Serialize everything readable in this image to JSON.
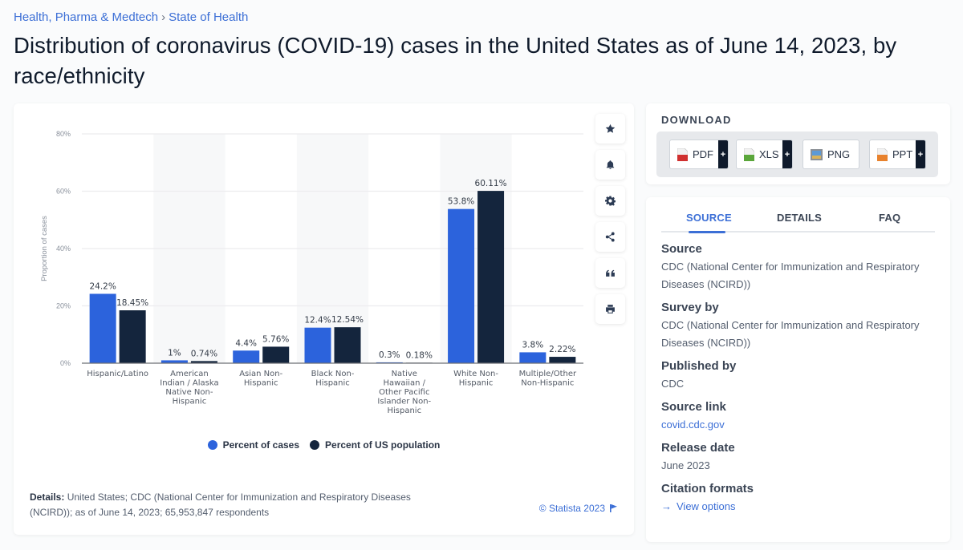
{
  "breadcrumb": {
    "items": [
      "Health, Pharma & Medtech",
      "State of Health"
    ],
    "separator": "›"
  },
  "title": "Distribution of coronavirus (COVID-19) cases in the United States as of June 14, 2023, by race/ethnicity",
  "colors": {
    "series_cases": "#2c63dc",
    "series_population": "#14253d",
    "accent": "#3c6fd6"
  },
  "chart_data": {
    "type": "bar",
    "title": "",
    "xlabel": "",
    "ylabel": "Proportion of cases",
    "ylim": [
      0,
      80
    ],
    "yticks": [
      "0%",
      "20%",
      "40%",
      "60%",
      "80%"
    ],
    "ytick_values": [
      0,
      20,
      40,
      60,
      80
    ],
    "grid": true,
    "categories": [
      [
        "Hispanic/Latino"
      ],
      [
        "American",
        "Indian / Alaska",
        "Native Non-",
        "Hispanic"
      ],
      [
        "Asian Non-",
        "Hispanic"
      ],
      [
        "Black Non-",
        "Hispanic"
      ],
      [
        "Native",
        "Hawaiian /",
        "Other Pacific",
        "Islander Non-",
        "Hispanic"
      ],
      [
        "White Non-",
        "Hispanic"
      ],
      [
        "Multiple/Other",
        "Non-Hispanic"
      ]
    ],
    "series": [
      {
        "name": "Percent of cases",
        "values": [
          24.2,
          1,
          4.4,
          12.4,
          0.3,
          53.8,
          3.8
        ],
        "labels": [
          "24.2%",
          "1%",
          "4.4%",
          "12.4%",
          "0.3%",
          "53.8%",
          "3.8%"
        ]
      },
      {
        "name": "Percent of US population",
        "values": [
          18.45,
          0.74,
          5.76,
          12.54,
          0.18,
          60.11,
          2.22
        ],
        "labels": [
          "18.45%",
          "0.74%",
          "5.76%",
          "12.54%",
          "0.18%",
          "60.11%",
          "2.22%"
        ]
      }
    ],
    "legend_position": "bottom-center"
  },
  "legend": [
    {
      "label": "Percent of cases"
    },
    {
      "label": "Percent of US population"
    }
  ],
  "tools": [
    {
      "name": "star-icon",
      "label": "Favorite"
    },
    {
      "name": "bell-icon",
      "label": "Notifications"
    },
    {
      "name": "gear-icon",
      "label": "Settings"
    },
    {
      "name": "share-icon",
      "label": "Share"
    },
    {
      "name": "quote-icon",
      "label": "Cite"
    },
    {
      "name": "print-icon",
      "label": "Print"
    }
  ],
  "details": {
    "label": "Details:",
    "text": "United States; CDC (National Center for Immunization and Respiratory Diseases (NCIRD)); as of June 14, 2023; 65,953,847 respondents"
  },
  "copyright": "© Statista 2023",
  "download": {
    "title": "DOWNLOAD",
    "buttons": [
      {
        "label": "PDF",
        "icon": "pdf-file-icon",
        "has_plus": true
      },
      {
        "label": "XLS",
        "icon": "xls-file-icon",
        "has_plus": true
      },
      {
        "label": "PNG",
        "icon": "png-image-icon",
        "has_plus": false
      },
      {
        "label": "PPT",
        "icon": "ppt-file-icon",
        "has_plus": true
      }
    ],
    "plus": "+"
  },
  "info": {
    "tabs": [
      {
        "label": "SOURCE",
        "active": true
      },
      {
        "label": "DETAILS",
        "active": false
      },
      {
        "label": "FAQ",
        "active": false
      }
    ],
    "sections": [
      {
        "label": "Source",
        "value": "CDC (National Center for Immunization and Respiratory Diseases (NCIRD))"
      },
      {
        "label": "Survey by",
        "value": "CDC (National Center for Immunization and Respiratory Diseases (NCIRD))"
      },
      {
        "label": "Published by",
        "value": "CDC"
      },
      {
        "label": "Source link",
        "value": "covid.cdc.gov",
        "link": true
      },
      {
        "label": "Release date",
        "value": "June 2023"
      },
      {
        "label": "Citation formats",
        "value": "View options",
        "link": true,
        "arrow": "→"
      }
    ]
  }
}
